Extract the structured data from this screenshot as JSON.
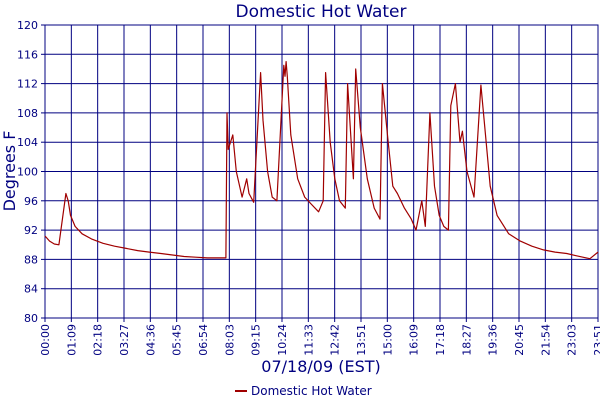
{
  "chart_data": {
    "type": "line",
    "title": "Domestic Hot Water",
    "xlabel": "07/18/09 (EST)",
    "ylabel": "Degrees F",
    "ylim": [
      80,
      120
    ],
    "yticks": [
      80,
      84,
      88,
      92,
      96,
      100,
      104,
      108,
      112,
      116,
      120
    ],
    "xticks": [
      "00:00",
      "01:09",
      "02:18",
      "03:27",
      "04:36",
      "05:45",
      "06:54",
      "08:03",
      "09:15",
      "10:24",
      "11:33",
      "12:42",
      "13:51",
      "15:00",
      "16:09",
      "17:18",
      "18:27",
      "19:36",
      "20:45",
      "21:54",
      "23:03",
      "23:51"
    ],
    "grid": true,
    "legend_position": "bottom-center",
    "series": [
      {
        "name": "Domestic Hot Water",
        "color": "#a00000",
        "x": [
          0.0,
          0.2,
          0.4,
          0.6,
          0.9,
          1.0,
          1.1,
          1.3,
          1.6,
          2.0,
          2.5,
          3.0,
          3.5,
          4.0,
          4.5,
          5.0,
          5.5,
          6.0,
          6.5,
          7.0,
          7.5,
          7.8,
          7.85,
          7.9,
          8.1,
          8.25,
          8.5,
          8.7,
          8.8,
          9.0,
          9.3,
          9.4,
          9.6,
          9.8,
          10.0,
          10.3,
          10.35,
          10.4,
          10.45,
          10.6,
          10.9,
          11.2,
          11.5,
          11.8,
          12.0,
          12.1,
          12.3,
          12.5,
          12.7,
          12.95,
          13.05,
          13.3,
          13.4,
          13.6,
          13.9,
          14.2,
          14.45,
          14.55,
          14.8,
          15.0,
          15.2,
          15.5,
          15.8,
          16.0,
          16.25,
          16.4,
          16.6,
          16.8,
          17.0,
          17.2,
          17.4,
          17.5,
          17.7,
          17.9,
          18.0,
          18.2,
          18.5,
          18.8,
          19.0,
          19.2,
          19.5,
          20.0,
          20.5,
          21.0,
          21.5,
          22.0,
          22.5,
          22.9,
          23.2,
          23.5,
          23.85
        ],
        "values": [
          91.2,
          90.5,
          90.1,
          90.0,
          97.0,
          96.0,
          94.0,
          92.5,
          91.5,
          90.8,
          90.2,
          89.8,
          89.5,
          89.2,
          89.0,
          88.8,
          88.6,
          88.4,
          88.3,
          88.2,
          88.2,
          88.2,
          108.0,
          103.0,
          105.0,
          100.0,
          96.5,
          99.0,
          97.0,
          95.8,
          113.5,
          107.0,
          100.0,
          96.5,
          96.0,
          114.5,
          113.0,
          115.0,
          113.0,
          105.0,
          99.0,
          96.5,
          95.5,
          94.5,
          96.0,
          113.5,
          104.0,
          99.0,
          96.0,
          95.0,
          112.0,
          99.0,
          114.0,
          106.0,
          99.0,
          95.0,
          93.5,
          112.0,
          104.0,
          98.0,
          97.0,
          95.0,
          93.5,
          92.0,
          96.0,
          92.5,
          108.0,
          98.0,
          94.0,
          92.5,
          92.0,
          109.0,
          112.0,
          104.0,
          105.5,
          100.0,
          96.5,
          111.8,
          105.0,
          98.0,
          94.0,
          91.5,
          90.5,
          89.8,
          89.3,
          89.0,
          88.8,
          88.5,
          88.3,
          88.1,
          89.0
        ]
      }
    ]
  }
}
